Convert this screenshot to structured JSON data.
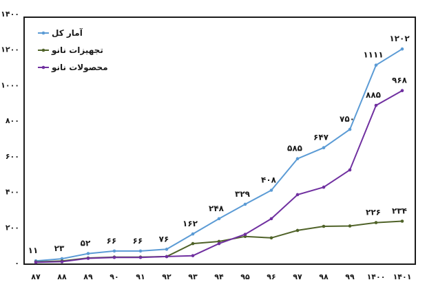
{
  "chart_data": {
    "type": "line",
    "title": "",
    "xlabel": "",
    "ylabel": "",
    "ylim": [
      0,
      1400
    ],
    "yticks": [
      "۰",
      "۲۰۰",
      "۴۰۰",
      "۶۰۰",
      "۸۰۰",
      "۱۰۰۰",
      "۱۲۰۰",
      "۱۴۰۰"
    ],
    "ytick_values": [
      0,
      200,
      400,
      600,
      800,
      1000,
      1200,
      1400
    ],
    "grid": false,
    "legend_position": "top-left",
    "categories": [
      "۸۷",
      "۸۸",
      "۸۹",
      "۹۰",
      "۹۱",
      "۹۲",
      "۹۳",
      "۹۴",
      "۹۵",
      "۹۶",
      "۹۷",
      "۹۸",
      "۹۹",
      "۱۴۰۰",
      "۱۴۰۱"
    ],
    "series": [
      {
        "name": "آمار کل",
        "color": "#5b9bd5",
        "values": [
          11,
          23,
          52,
          66,
          66,
          76,
          162,
          248,
          329,
          408,
          585,
          647,
          750,
          1111,
          1202
        ],
        "labels": [
          "۱۱",
          "۲۳",
          "۵۲",
          "۶۶",
          "۶۶",
          "۷۶",
          "۱۶۲",
          "۲۴۸",
          "۳۲۹",
          "۴۰۸",
          "۵۸۵",
          "۶۴۷",
          "۷۵۰",
          "۱۱۱۱",
          "۱۲۰۲"
        ]
      },
      {
        "name": "تجهیزات نانو",
        "color": "#4f6228",
        "values": [
          5,
          10,
          27,
          32,
          32,
          35,
          108,
          120,
          148,
          140,
          182,
          205,
          207,
          226,
          234
        ],
        "labels": [
          "",
          "",
          "",
          "",
          "",
          "",
          "",
          "",
          "",
          "",
          "",
          "",
          "",
          "۲۲۶",
          "۲۳۴"
        ]
      },
      {
        "name": "محصولات نانو",
        "color": "#7030a0",
        "values": [
          3,
          6,
          25,
          30,
          30,
          35,
          40,
          108,
          160,
          248,
          383,
          425,
          522,
          885,
          968
        ],
        "labels": [
          "",
          "",
          "",
          "",
          "",
          "",
          "",
          "",
          "",
          "",
          "",
          "",
          "",
          "۸۸۵",
          "۹۶۸"
        ]
      }
    ]
  }
}
